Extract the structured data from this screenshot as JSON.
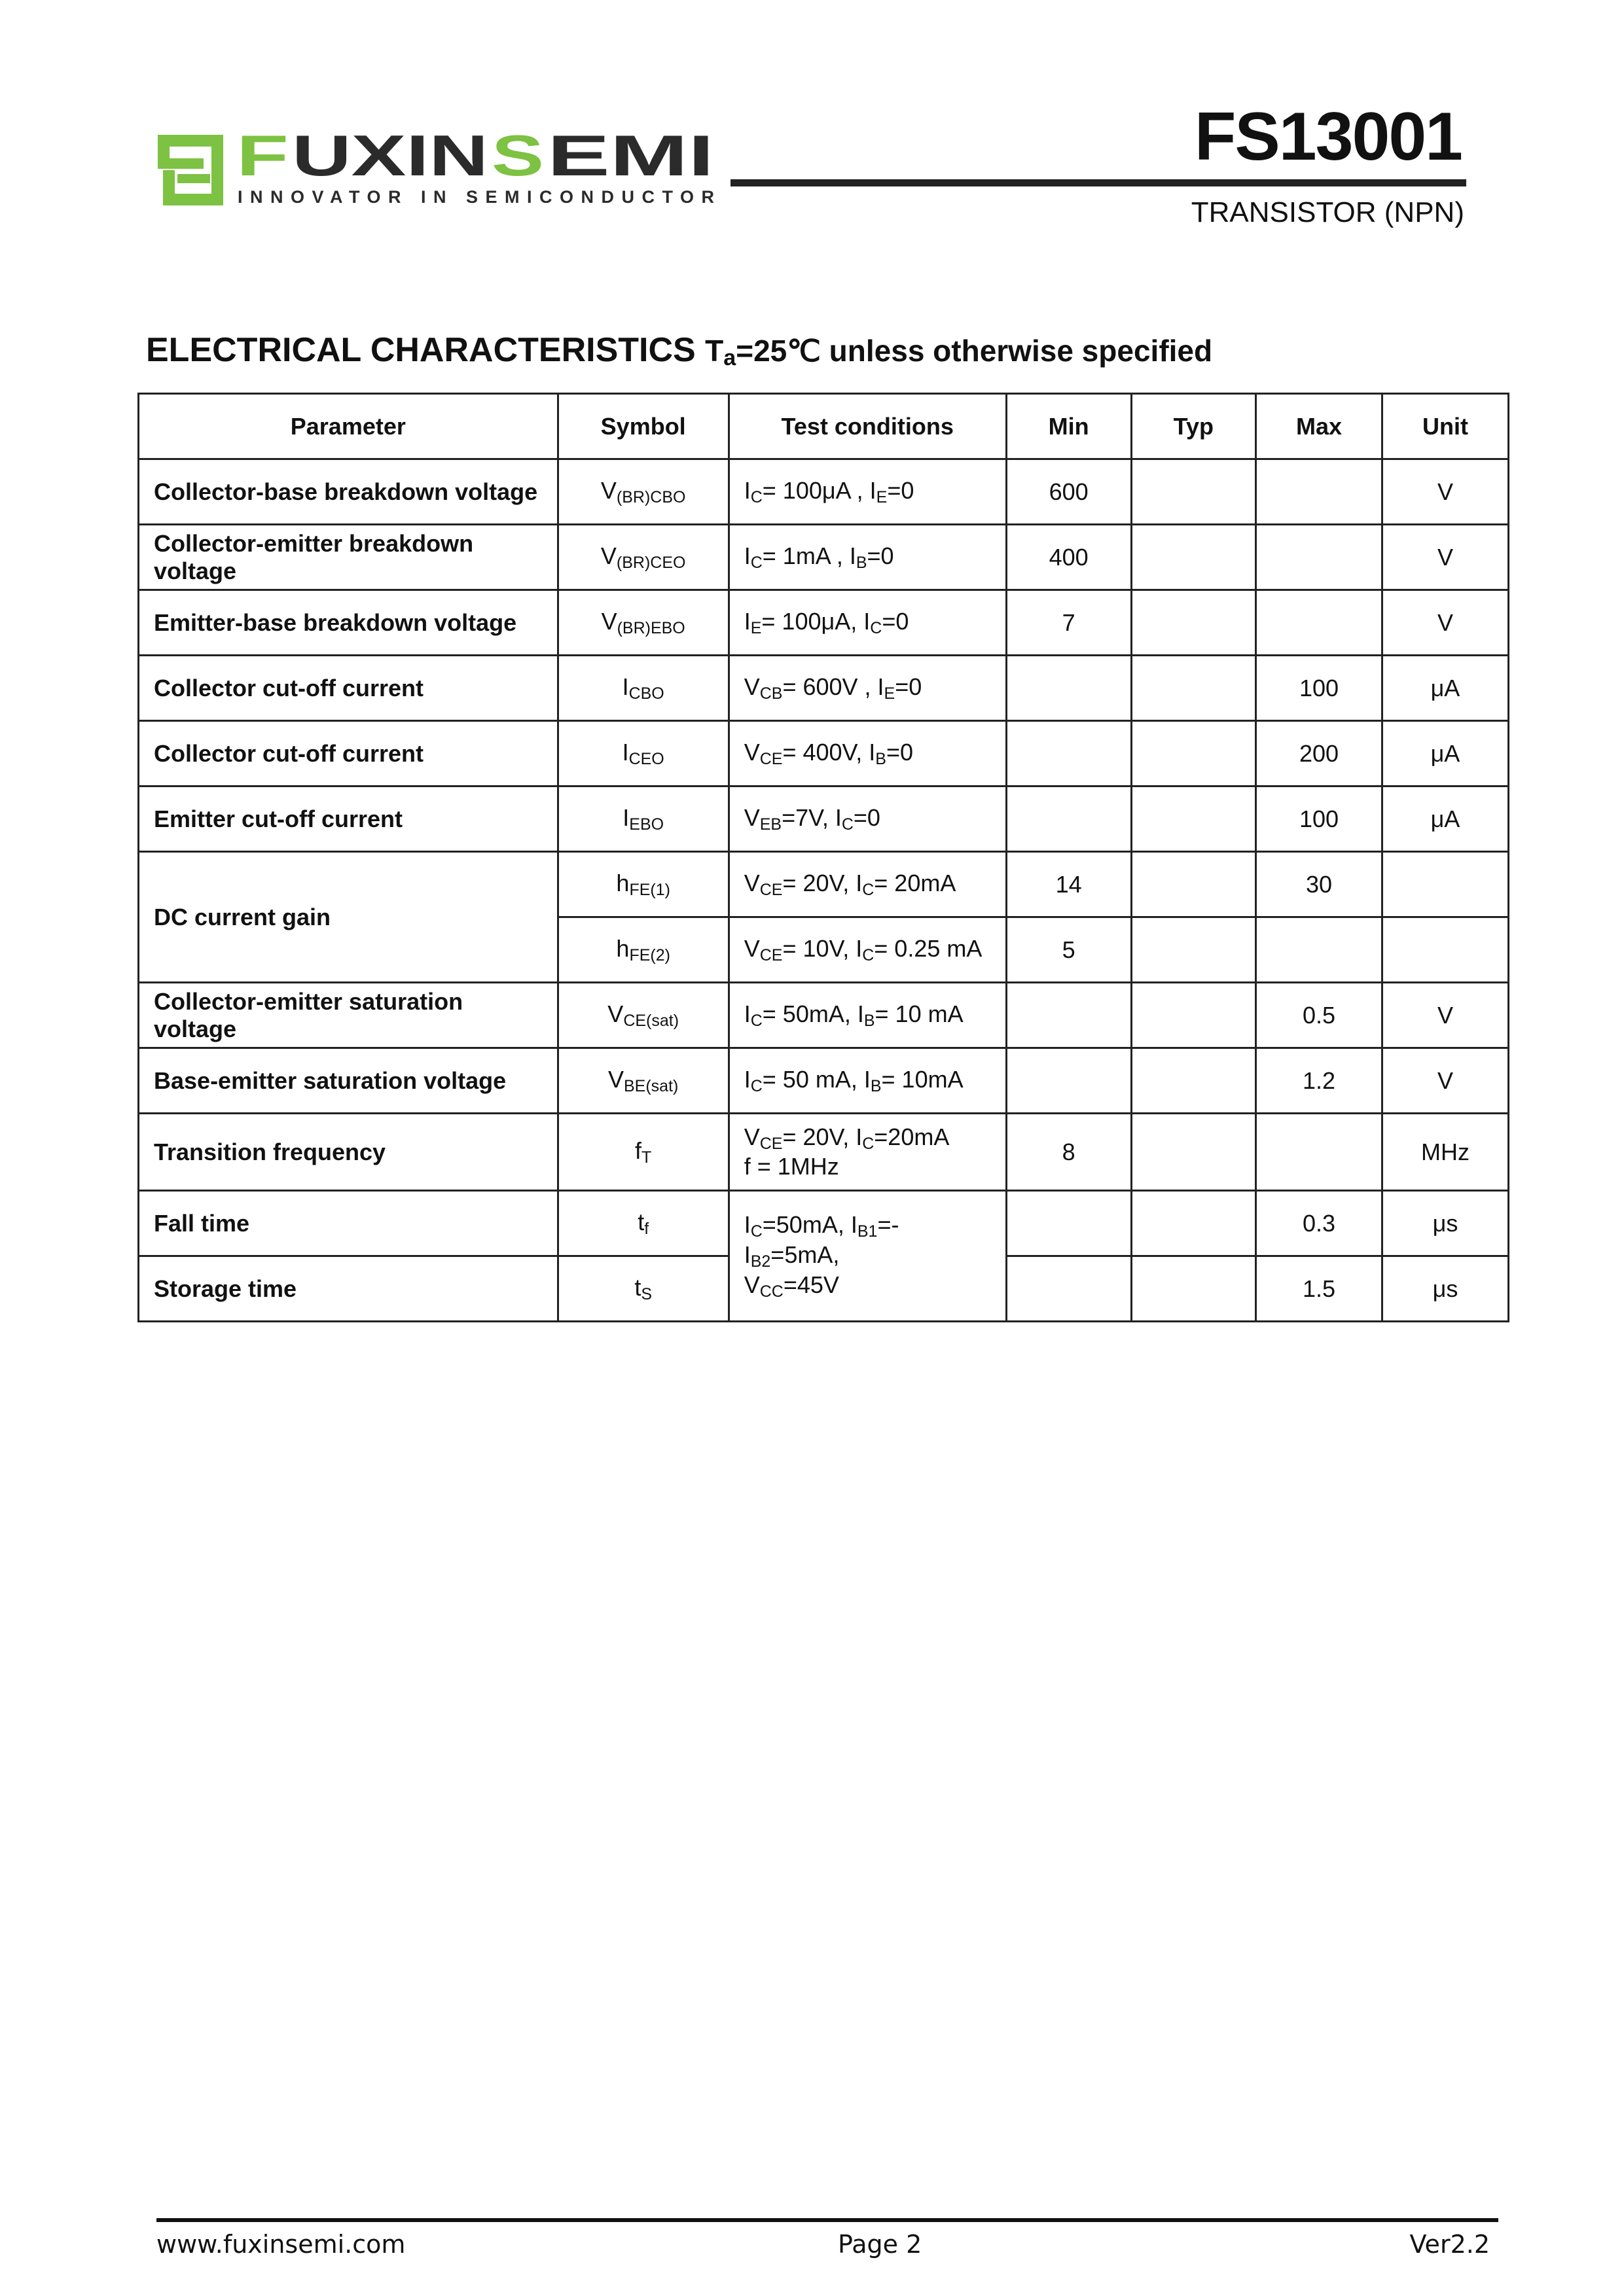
{
  "header": {
    "logo_text": "FUXINSEMI",
    "logo_tagline": "INNOVATOR IN SEMICONDUCTOR",
    "part_number": "FS13001",
    "part_type": "TRANSISTOR (NPN)",
    "colors": {
      "logo_green": "#7dc242",
      "logo_dark": "#2b2b2b"
    }
  },
  "section": {
    "title": "ELECTRICAL CHARACTERISTICS",
    "condition_T": "T",
    "condition_sub": "a",
    "condition_rest": "=25℃ unless otherwise specified"
  },
  "table": {
    "headers": [
      "Parameter",
      "Symbol",
      "Test  conditions",
      "Min",
      "Typ",
      "Max",
      "Unit"
    ],
    "rows": [
      {
        "param": "Collector-base breakdown voltage",
        "sym": [
          [
            "V",
            ""
          ],
          [
            "",
            "(BR)CBO"
          ]
        ],
        "cond": [
          [
            "I",
            ""
          ],
          [
            "",
            "C"
          ],
          [
            "= 100μA , I",
            ""
          ],
          [
            "",
            "E"
          ],
          [
            "=0",
            ""
          ]
        ],
        "min": "600",
        "typ": "",
        "max": "",
        "unit": "V"
      },
      {
        "param": "Collector-emitter breakdown voltage",
        "sym": [
          [
            "V",
            ""
          ],
          [
            "",
            "(BR)CEO"
          ]
        ],
        "cond": [
          [
            "I",
            ""
          ],
          [
            "",
            "C"
          ],
          [
            "= 1mA , I",
            ""
          ],
          [
            "",
            "B"
          ],
          [
            "=0",
            ""
          ]
        ],
        "min": "400",
        "typ": "",
        "max": "",
        "unit": "V"
      },
      {
        "param": "Emitter-base breakdown voltage",
        "sym": [
          [
            "V",
            ""
          ],
          [
            "",
            "(BR)EBO"
          ]
        ],
        "cond": [
          [
            "I",
            ""
          ],
          [
            "",
            "E"
          ],
          [
            "= 100μA, I",
            ""
          ],
          [
            "",
            "C"
          ],
          [
            "=0",
            ""
          ]
        ],
        "min": "7",
        "typ": "",
        "max": "",
        "unit": "V"
      },
      {
        "param": "Collector cut-off current",
        "sym": [
          [
            "I",
            ""
          ],
          [
            "",
            "CBO"
          ]
        ],
        "cond": [
          [
            "V",
            ""
          ],
          [
            "",
            "CB"
          ],
          [
            "= 600V , I",
            ""
          ],
          [
            "",
            "E"
          ],
          [
            "=0",
            ""
          ]
        ],
        "min": "",
        "typ": "",
        "max": "100",
        "unit": "μA"
      },
      {
        "param": "Collector cut-off current",
        "sym": [
          [
            "I",
            ""
          ],
          [
            "",
            "CEO"
          ]
        ],
        "cond": [
          [
            "V",
            ""
          ],
          [
            "",
            "CE"
          ],
          [
            "= 400V, I",
            ""
          ],
          [
            "",
            "B"
          ],
          [
            "=0",
            ""
          ]
        ],
        "min": "",
        "typ": "",
        "max": "200",
        "unit": "μA"
      },
      {
        "param": "Emitter cut-off current",
        "sym": [
          [
            "I",
            ""
          ],
          [
            "",
            "EBO"
          ]
        ],
        "cond": [
          [
            "V",
            ""
          ],
          [
            "",
            "EB"
          ],
          [
            "=7V, I",
            ""
          ],
          [
            "",
            "C"
          ],
          [
            "=0",
            ""
          ]
        ],
        "min": "",
        "typ": "",
        "max": "100",
        "unit": "μA"
      },
      {
        "param": "DC current gain",
        "rowspan": 2,
        "sym": [
          [
            "h",
            ""
          ],
          [
            "",
            "FE(1)"
          ]
        ],
        "cond": [
          [
            "V",
            ""
          ],
          [
            "",
            "CE"
          ],
          [
            "= 20V, I",
            ""
          ],
          [
            "",
            "C"
          ],
          [
            "= 20mA",
            ""
          ]
        ],
        "min": "14",
        "typ": "",
        "max": "30",
        "unit": ""
      },
      {
        "param": null,
        "sym": [
          [
            "h",
            ""
          ],
          [
            "",
            "FE(2)"
          ]
        ],
        "cond": [
          [
            "V",
            ""
          ],
          [
            "",
            "CE"
          ],
          [
            "= 10V, I",
            ""
          ],
          [
            "",
            "C"
          ],
          [
            "= 0.25 mA",
            ""
          ]
        ],
        "min": "5",
        "typ": "",
        "max": "",
        "unit": ""
      },
      {
        "param": "Collector-emitter saturation voltage",
        "sym": [
          [
            "V",
            ""
          ],
          [
            "",
            "CE(sat)"
          ]
        ],
        "cond": [
          [
            "I",
            ""
          ],
          [
            "",
            "C"
          ],
          [
            "= 50mA, I",
            ""
          ],
          [
            "",
            "B"
          ],
          [
            "= 10 mA",
            ""
          ]
        ],
        "min": "",
        "typ": "",
        "max": "0.5",
        "unit": "V"
      },
      {
        "param": "Base-emitter saturation voltage",
        "sym": [
          [
            "V",
            ""
          ],
          [
            "",
            "BE(sat)"
          ]
        ],
        "cond": [
          [
            "I",
            ""
          ],
          [
            "",
            "C"
          ],
          [
            "= 50 mA, I",
            ""
          ],
          [
            "",
            "B"
          ],
          [
            "= 10mA",
            ""
          ]
        ],
        "min": "",
        "typ": "",
        "max": "1.2",
        "unit": "V"
      },
      {
        "param": "Transition frequency",
        "sym": [
          [
            "f",
            ""
          ],
          [
            "",
            "T"
          ]
        ],
        "cond": [
          [
            "V",
            ""
          ],
          [
            "",
            "CE"
          ],
          [
            "= 20V, I",
            ""
          ],
          [
            "",
            "C"
          ],
          [
            "=20mA",
            ""
          ],
          [
            "\n",
            ""
          ],
          [
            "f = 1MHz",
            ""
          ]
        ],
        "min": "8",
        "typ": "",
        "max": "",
        "unit": "MHz"
      },
      {
        "param": "Fall time",
        "sym": [
          [
            "t",
            ""
          ],
          [
            "",
            "f"
          ]
        ],
        "condspan": 2,
        "cond": [
          [
            "I",
            ""
          ],
          [
            "",
            "C"
          ],
          [
            "=50mA, I",
            ""
          ],
          [
            "",
            "B1"
          ],
          [
            "=-I",
            ""
          ],
          [
            "",
            "B2"
          ],
          [
            "=5mA,",
            ""
          ],
          [
            "\n",
            ""
          ],
          [
            "V",
            ""
          ],
          [
            "",
            "CC"
          ],
          [
            "=45V",
            ""
          ]
        ],
        "min": "",
        "typ": "",
        "max": "0.3",
        "unit": "μs"
      },
      {
        "param": "Storage time",
        "sym": [
          [
            "t",
            ""
          ],
          [
            "",
            "S"
          ]
        ],
        "cond": null,
        "min": "",
        "typ": "",
        "max": "1.5",
        "unit": "μs"
      }
    ]
  },
  "footer": {
    "website": "www.fuxinsemi.com",
    "page": "Page 2",
    "version": "Ver2.2"
  }
}
